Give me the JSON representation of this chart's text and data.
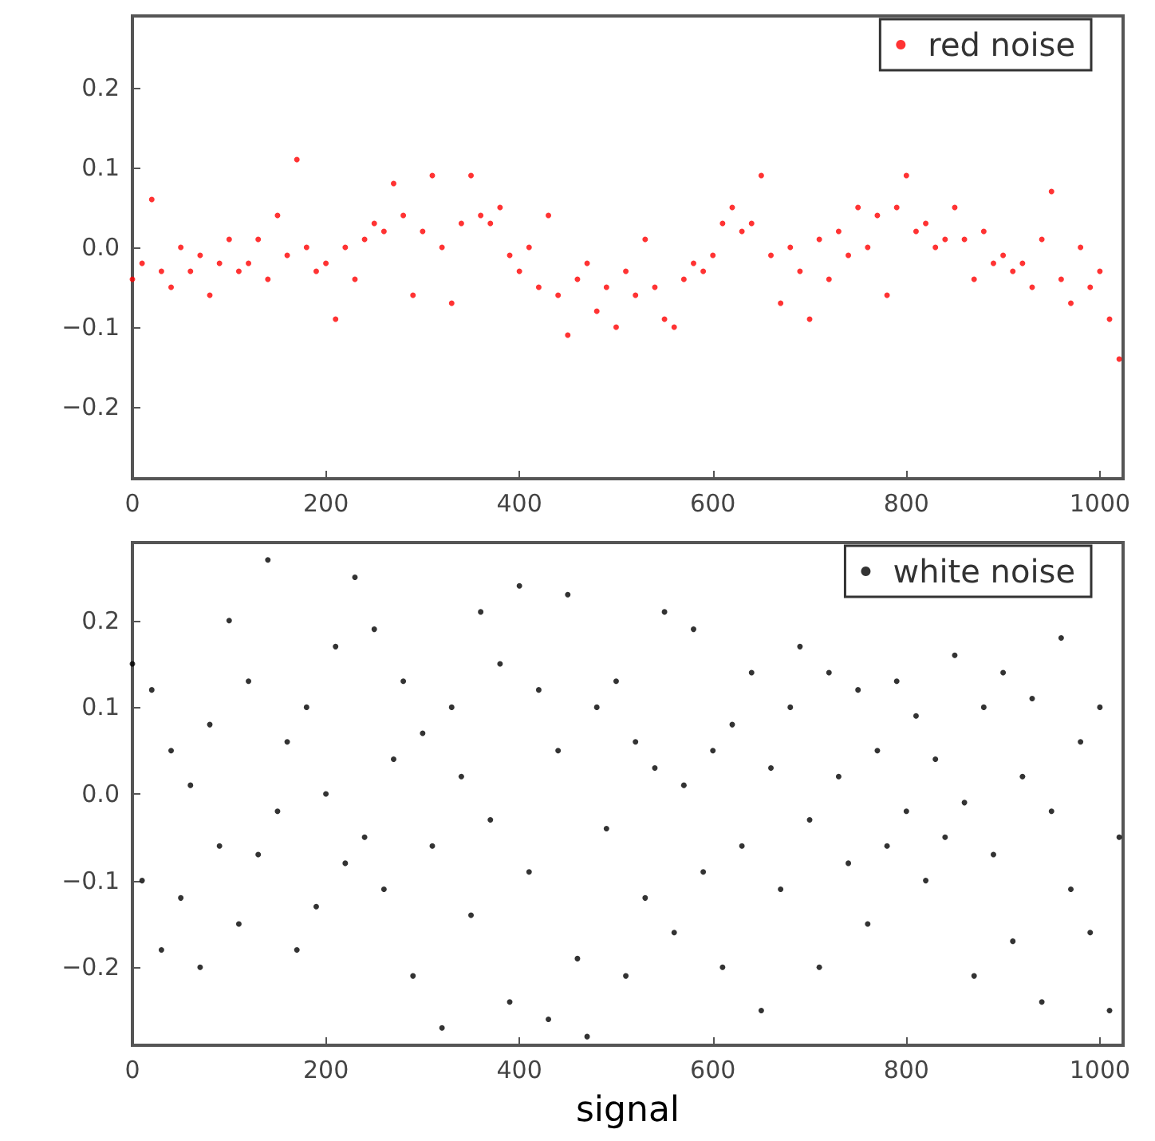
{
  "chart_data": [
    {
      "type": "scatter",
      "xlim": [
        0,
        1024
      ],
      "ylim": [
        -0.29,
        0.29
      ],
      "xticks": [
        0,
        200,
        400,
        600,
        800,
        1000
      ],
      "yticks": [
        {
          "value": -0.2,
          "label": "−0.2"
        },
        {
          "value": -0.1,
          "label": "−0.1"
        },
        {
          "value": 0,
          "label": "0.0"
        },
        {
          "value": 0.1,
          "label": "0.1"
        },
        {
          "value": 0.2,
          "label": "0.2"
        }
      ],
      "grid": false,
      "legend": "top right",
      "marker": "circle",
      "x": [
        0,
        10,
        20,
        30,
        40,
        50,
        60,
        70,
        80,
        90,
        100,
        110,
        120,
        130,
        140,
        150,
        160,
        170,
        180,
        190,
        200,
        210,
        220,
        230,
        240,
        250,
        260,
        270,
        280,
        290,
        300,
        310,
        320,
        330,
        340,
        350,
        360,
        370,
        380,
        390,
        400,
        410,
        420,
        430,
        440,
        450,
        460,
        470,
        480,
        490,
        500,
        510,
        520,
        530,
        540,
        550,
        560,
        570,
        580,
        590,
        600,
        610,
        620,
        630,
        640,
        650,
        660,
        670,
        680,
        690,
        700,
        710,
        720,
        730,
        740,
        750,
        760,
        770,
        780,
        790,
        800,
        810,
        820,
        830,
        840,
        850,
        860,
        870,
        880,
        890,
        900,
        910,
        920,
        930,
        940,
        950,
        960,
        970,
        980,
        990,
        1000,
        1010,
        1020
      ],
      "series": [
        {
          "name": "red noise",
          "color": "#ff0000",
          "values": [
            -0.04,
            -0.02,
            0.06,
            -0.03,
            -0.05,
            0.0,
            -0.03,
            -0.01,
            -0.06,
            -0.02,
            0.01,
            -0.03,
            -0.02,
            0.01,
            -0.04,
            0.04,
            -0.01,
            0.11,
            0.0,
            -0.03,
            -0.02,
            -0.09,
            0.0,
            -0.04,
            0.01,
            0.03,
            0.02,
            0.08,
            0.04,
            -0.06,
            0.02,
            0.09,
            0.0,
            -0.07,
            0.03,
            0.09,
            0.04,
            0.03,
            0.05,
            -0.01,
            -0.03,
            0.0,
            -0.05,
            0.04,
            -0.06,
            -0.11,
            -0.04,
            -0.02,
            -0.08,
            -0.05,
            -0.1,
            -0.03,
            -0.06,
            0.01,
            -0.05,
            -0.09,
            -0.1,
            -0.04,
            -0.02,
            -0.03,
            -0.01,
            0.03,
            0.05,
            0.02,
            0.03,
            0.09,
            -0.01,
            -0.07,
            0.0,
            -0.03,
            -0.09,
            0.01,
            -0.04,
            0.02,
            -0.01,
            0.05,
            0.0,
            0.04,
            -0.06,
            0.05,
            0.09,
            0.02,
            0.03,
            0.0,
            0.01,
            0.05,
            0.01,
            -0.04,
            0.02,
            -0.02,
            -0.01,
            -0.03,
            -0.02,
            -0.05,
            0.01,
            0.07,
            -0.04,
            -0.07,
            0.0,
            -0.05,
            -0.03,
            -0.09,
            -0.14
          ]
        }
      ]
    },
    {
      "type": "scatter",
      "xlabel": "signal",
      "xlim": [
        0,
        1024
      ],
      "ylim": [
        -0.29,
        0.29
      ],
      "xticks": [
        0,
        200,
        400,
        600,
        800,
        1000
      ],
      "yticks": [
        {
          "value": -0.2,
          "label": "−0.2"
        },
        {
          "value": -0.1,
          "label": "−0.1"
        },
        {
          "value": 0,
          "label": "0.0"
        },
        {
          "value": 0.1,
          "label": "0.1"
        },
        {
          "value": 0.2,
          "label": "0.2"
        }
      ],
      "grid": false,
      "legend": "top right",
      "marker": "circle",
      "x": [
        0,
        10,
        20,
        30,
        40,
        50,
        60,
        70,
        80,
        90,
        100,
        110,
        120,
        130,
        140,
        150,
        160,
        170,
        180,
        190,
        200,
        210,
        220,
        230,
        240,
        250,
        260,
        270,
        280,
        290,
        300,
        310,
        320,
        330,
        340,
        350,
        360,
        370,
        380,
        390,
        400,
        410,
        420,
        430,
        440,
        450,
        460,
        470,
        480,
        490,
        500,
        510,
        520,
        530,
        540,
        550,
        560,
        570,
        580,
        590,
        600,
        610,
        620,
        630,
        640,
        650,
        660,
        670,
        680,
        690,
        700,
        710,
        720,
        730,
        740,
        750,
        760,
        770,
        780,
        790,
        800,
        810,
        820,
        830,
        840,
        850,
        860,
        870,
        880,
        890,
        900,
        910,
        920,
        930,
        940,
        950,
        960,
        970,
        980,
        990,
        1000,
        1010,
        1020
      ],
      "series": [
        {
          "name": "white noise",
          "color": "#000000",
          "values": [
            0.15,
            -0.1,
            0.12,
            -0.18,
            0.05,
            -0.12,
            0.01,
            -0.2,
            0.08,
            -0.06,
            0.2,
            -0.15,
            0.13,
            -0.07,
            0.27,
            -0.02,
            0.06,
            -0.18,
            0.1,
            -0.13,
            0.0,
            0.17,
            -0.08,
            0.25,
            -0.05,
            0.19,
            -0.11,
            0.04,
            0.13,
            -0.21,
            0.07,
            -0.06,
            -0.27,
            0.1,
            0.02,
            -0.14,
            0.21,
            -0.03,
            0.15,
            -0.24,
            0.24,
            -0.09,
            0.12,
            -0.26,
            0.05,
            0.23,
            -0.19,
            -0.28,
            0.1,
            -0.04,
            0.13,
            -0.21,
            0.06,
            -0.12,
            0.03,
            0.21,
            -0.16,
            0.01,
            0.19,
            -0.09,
            0.05,
            -0.2,
            0.08,
            -0.06,
            0.14,
            -0.25,
            0.03,
            -0.11,
            0.1,
            0.17,
            -0.03,
            -0.2,
            0.14,
            0.02,
            -0.08,
            0.12,
            -0.15,
            0.05,
            -0.06,
            0.13,
            -0.02,
            0.09,
            -0.1,
            0.04,
            -0.05,
            0.16,
            -0.01,
            -0.21,
            0.1,
            -0.07,
            0.14,
            -0.17,
            0.02,
            0.11,
            -0.24,
            -0.02,
            0.18,
            -0.11,
            0.06,
            -0.16,
            0.1,
            -0.25,
            -0.05
          ]
        }
      ]
    }
  ]
}
